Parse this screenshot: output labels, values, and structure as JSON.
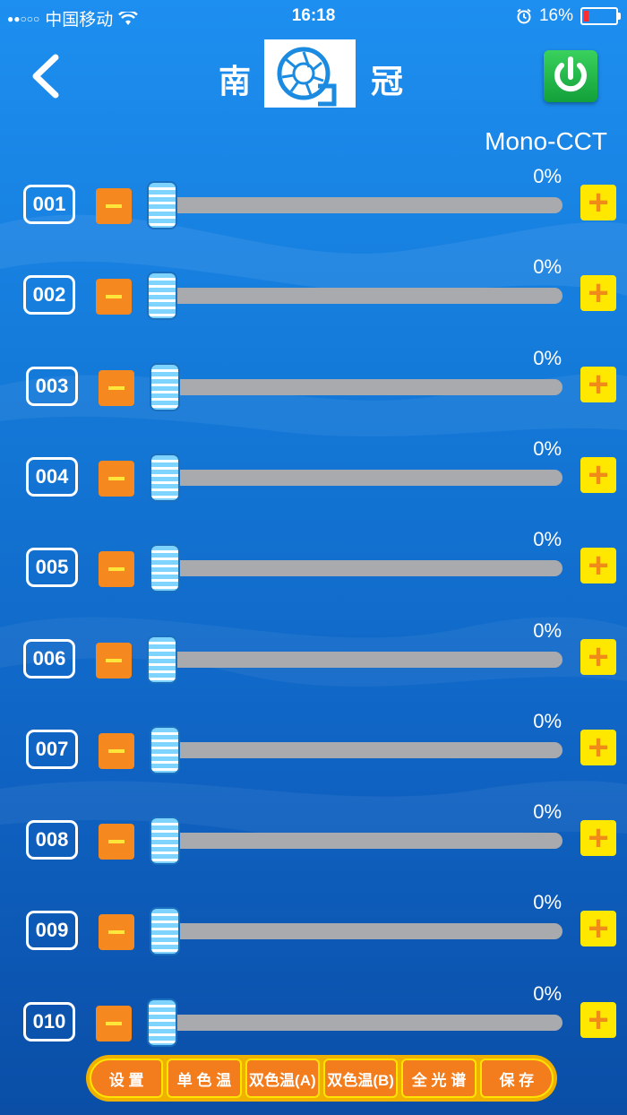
{
  "status_bar": {
    "carrier": "中国移动",
    "time": "16:18",
    "battery": "16%",
    "battery_level": 0.16
  },
  "header": {
    "title_left": "南",
    "title_right": "冠",
    "mode": "Mono-CCT"
  },
  "channels": [
    {
      "id": "001",
      "percent": "0%",
      "level": 0
    },
    {
      "id": "002",
      "percent": "0%",
      "level": 0
    },
    {
      "id": "003",
      "percent": "0%",
      "level": 0
    },
    {
      "id": "004",
      "percent": "0%",
      "level": 0
    },
    {
      "id": "005",
      "percent": "0%",
      "level": 0
    },
    {
      "id": "006",
      "percent": "0%",
      "level": 0
    },
    {
      "id": "007",
      "percent": "0%",
      "level": 0
    },
    {
      "id": "008",
      "percent": "0%",
      "level": 0
    },
    {
      "id": "009",
      "percent": "0%",
      "level": 0
    },
    {
      "id": "010",
      "percent": "0%",
      "level": 0
    }
  ],
  "tabs": [
    "设 置",
    "单 色 温",
    "双色温(A)",
    "双色温(B)",
    "全 光 谱",
    "保 存"
  ],
  "colors": {
    "minus": "#f5891f",
    "plus": "#ffe800",
    "power": "#12a03a",
    "tab": "#f37c1c",
    "tab_border": "#ffe400"
  }
}
